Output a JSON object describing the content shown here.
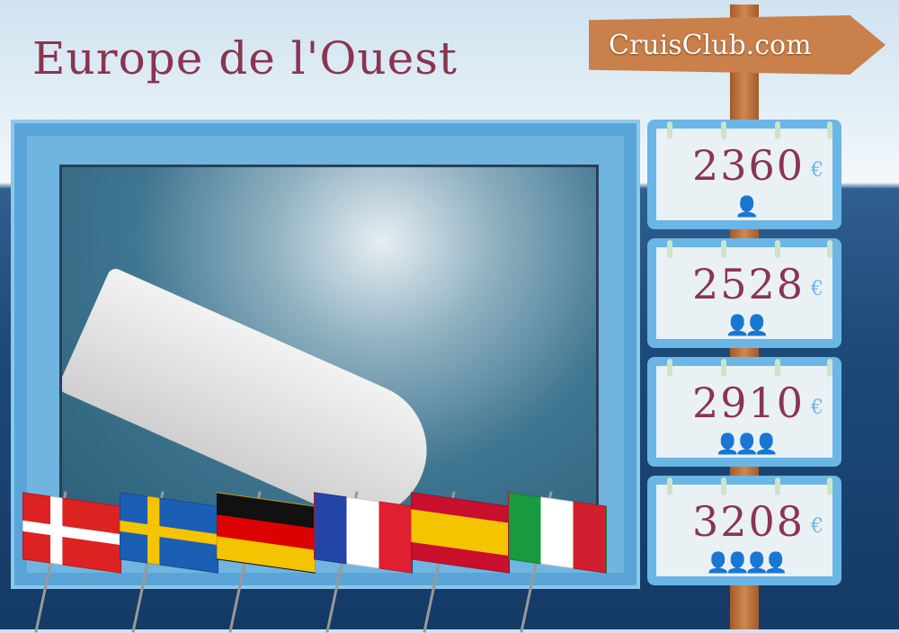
{
  "title": "Europe de l'Ouest",
  "brand": "CruisClub.com",
  "prices": [
    {
      "amount": "2360",
      "currency": "€",
      "icon": "one-person-icon",
      "people": "👤"
    },
    {
      "amount": "2528",
      "currency": "€",
      "icon": "two-people-icon",
      "people": "👤👤"
    },
    {
      "amount": "2910",
      "currency": "€",
      "icon": "family-three-icon",
      "people": "👤👤👤"
    },
    {
      "amount": "3208",
      "currency": "€",
      "icon": "family-four-icon",
      "people": "👤👤👤👤"
    }
  ],
  "flags": [
    "Denmark",
    "Sweden",
    "Germany",
    "France",
    "Spain",
    "Italy"
  ],
  "colors": {
    "title": "#8a3550",
    "frame": "#6ab6e6",
    "sign": "#c9804a"
  }
}
